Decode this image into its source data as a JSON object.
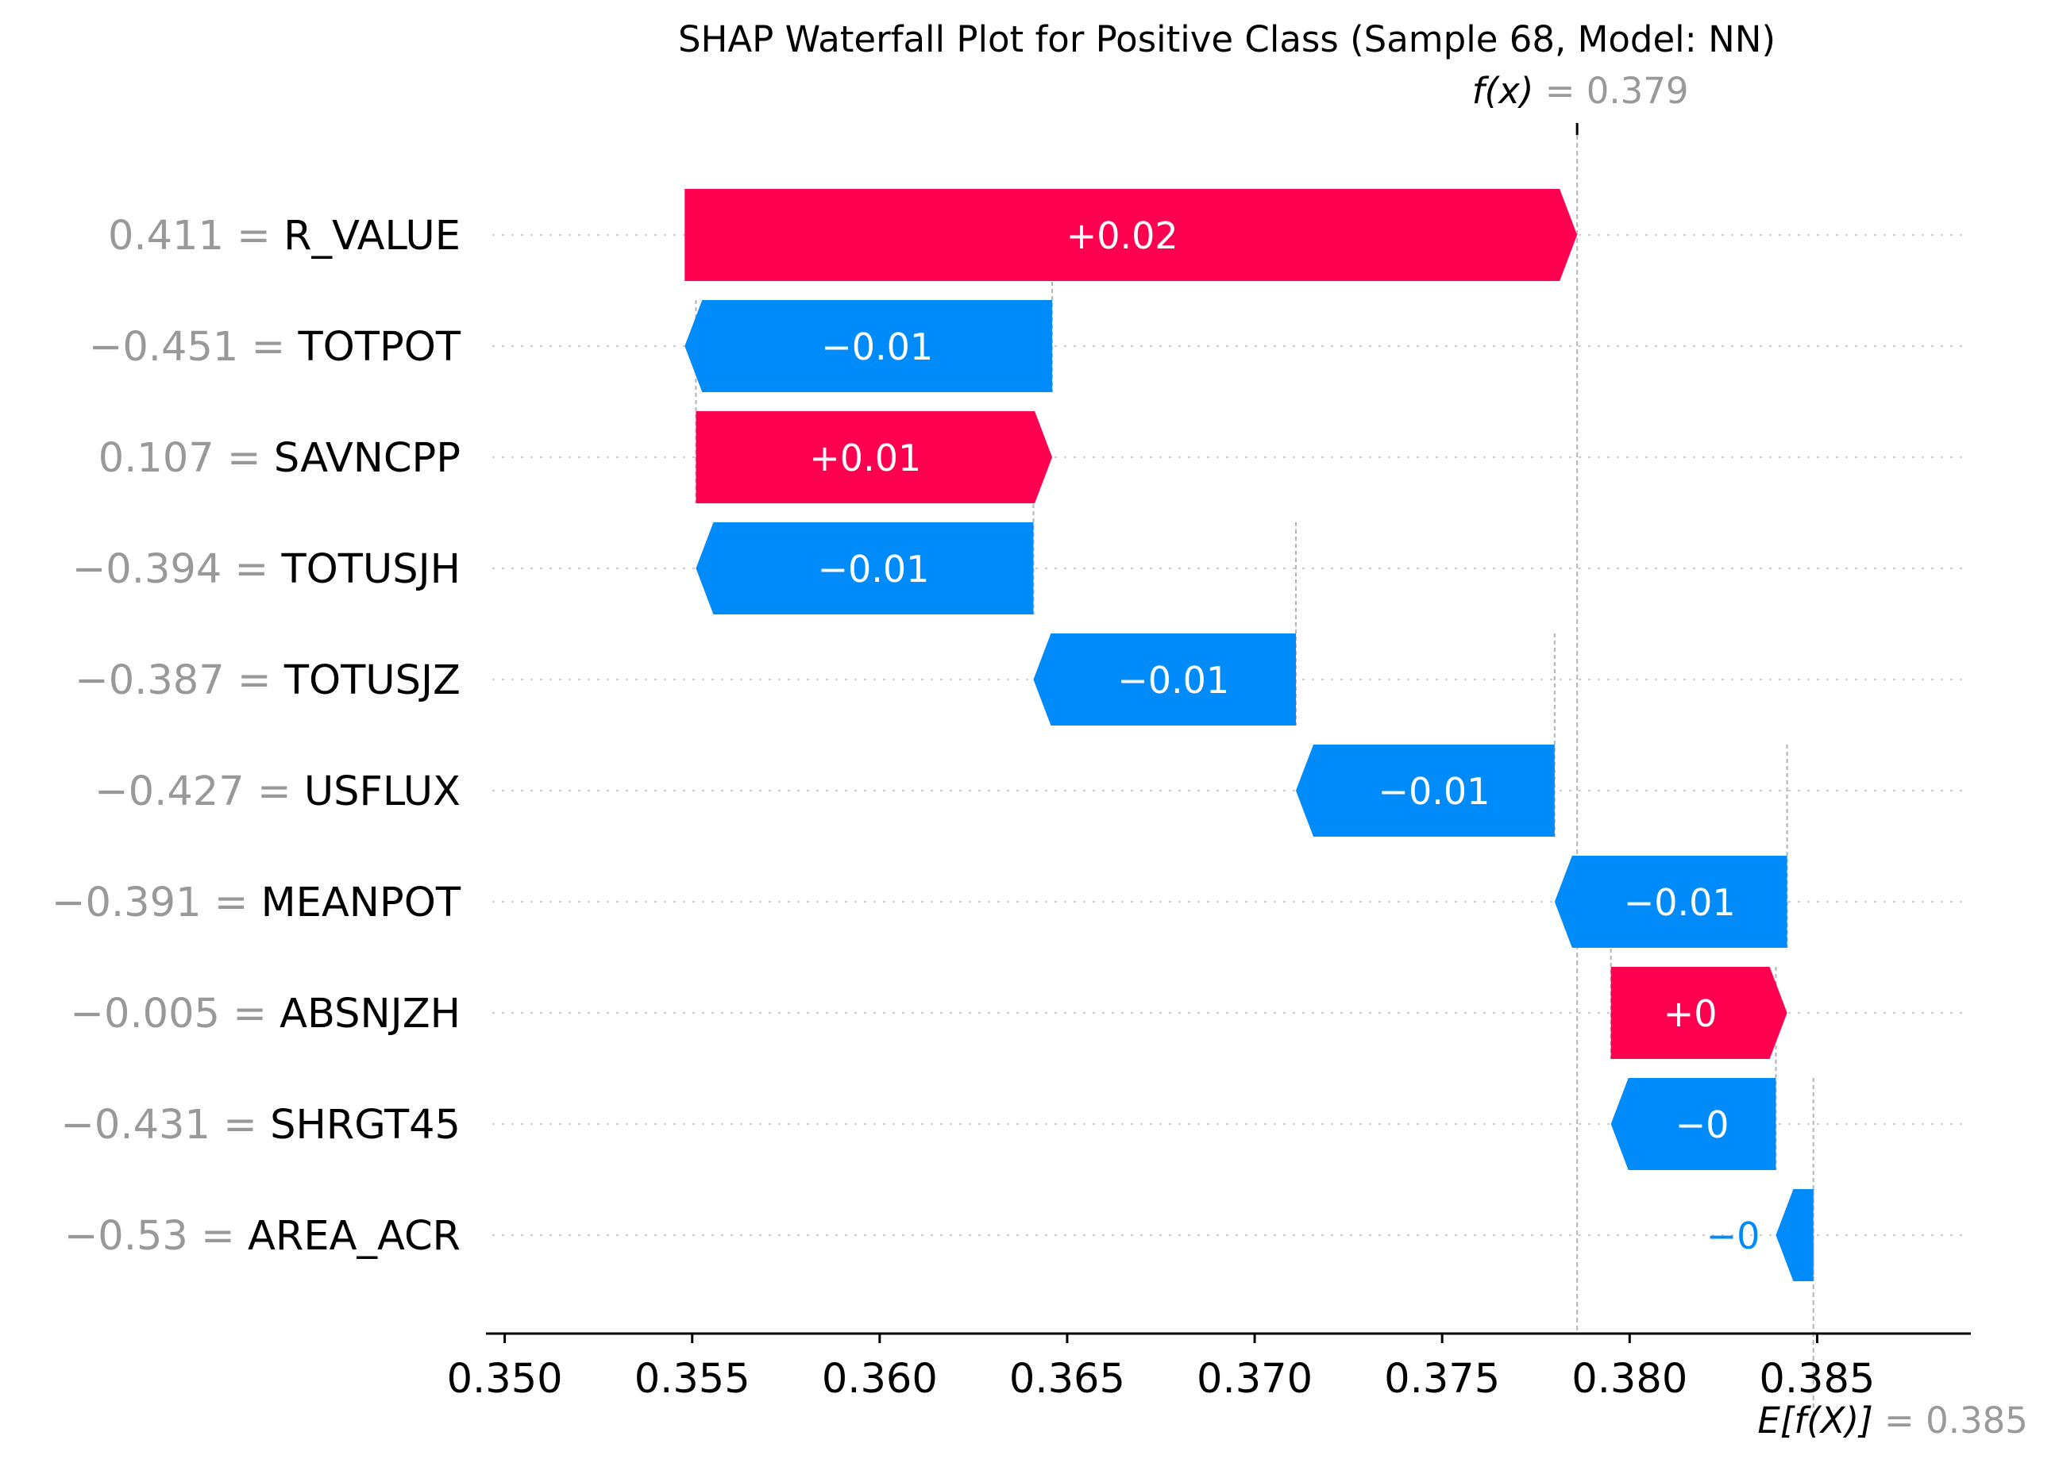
{
  "chart_data": {
    "type": "waterfall",
    "title": "SHAP Waterfall Plot for Positive Class (Sample 68, Model: NN)",
    "fx": {
      "label": "f(x)",
      "value_label": "= 0.379",
      "value": 0.3786
    },
    "ex": {
      "label": "E[f(X)]",
      "value_label": "= 0.385",
      "value": 0.3849
    },
    "xlim": [
      0.3495,
      0.3891
    ],
    "xticks": [
      0.35,
      0.355,
      0.36,
      0.365,
      0.37,
      0.375,
      0.38,
      0.385
    ],
    "xtick_labels": [
      "0.350",
      "0.355",
      "0.360",
      "0.365",
      "0.370",
      "0.375",
      "0.380",
      "0.385"
    ],
    "colors": {
      "positive": "#ff0051",
      "negative": "#008bfb",
      "feature_value": "#999999",
      "grid": "#cccccc"
    },
    "features": [
      {
        "name": "R_VALUE",
        "value_label": "0.411",
        "shap": 0.0238,
        "label": "+0.02",
        "from": 0.3548,
        "to": 0.3786
      },
      {
        "name": "TOTPOT",
        "value_label": "−0.451",
        "shap": -0.0098,
        "label": "−0.01",
        "from": 0.3646,
        "to": 0.3548
      },
      {
        "name": "SAVNCPP",
        "value_label": "0.107",
        "shap": 0.0095,
        "label": "+0.01",
        "from": 0.3551,
        "to": 0.3646
      },
      {
        "name": "TOTUSJH",
        "value_label": "−0.394",
        "shap": -0.009,
        "label": "−0.01",
        "from": 0.3641,
        "to": 0.3551
      },
      {
        "name": "TOTUSJZ",
        "value_label": "−0.387",
        "shap": -0.007,
        "label": "−0.01",
        "from": 0.3711,
        "to": 0.3641
      },
      {
        "name": "USFLUX",
        "value_label": "−0.427",
        "shap": -0.0069,
        "label": "−0.01",
        "from": 0.378,
        "to": 0.3711
      },
      {
        "name": "MEANPOT",
        "value_label": "−0.391",
        "shap": -0.0062,
        "label": "−0.01",
        "from": 0.3842,
        "to": 0.378
      },
      {
        "name": "ABSNJZH",
        "value_label": "−0.005",
        "shap": 0.0047,
        "label": "+0",
        "from": 0.3795,
        "to": 0.3842
      },
      {
        "name": "SHRGT45",
        "value_label": "−0.431",
        "shap": -0.0044,
        "label": "−0",
        "from": 0.3839,
        "to": 0.3795
      },
      {
        "name": "AREA_ACR",
        "value_label": "−0.53",
        "shap": -0.001,
        "label": "−0",
        "from": 0.3849,
        "to": 0.3839
      }
    ]
  }
}
